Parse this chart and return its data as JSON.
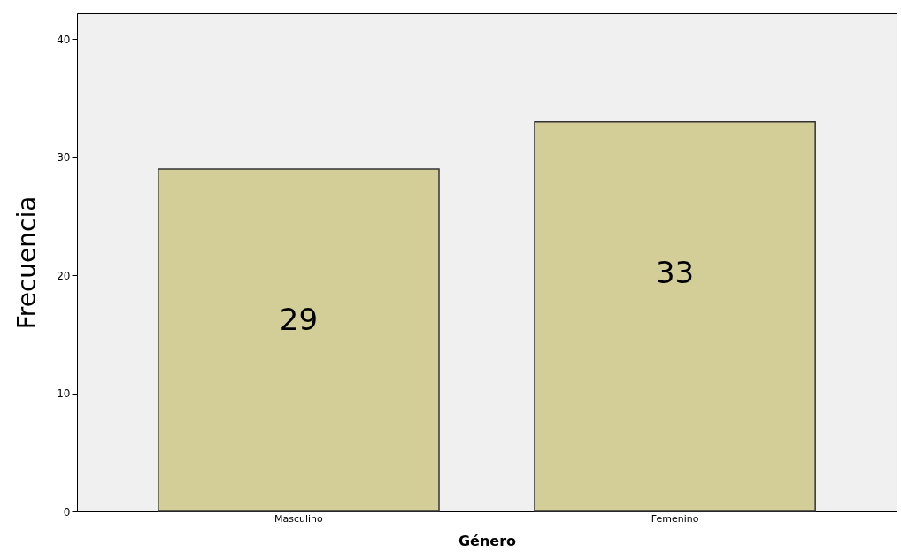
{
  "chart_data": {
    "type": "bar",
    "xlabel": "Género",
    "ylabel": "Frecuencia",
    "categories": [
      "Masculino",
      "Femenino"
    ],
    "values": [
      29,
      33
    ],
    "color": "#d3ce97",
    "ylim": [
      0,
      42.2
    ],
    "yticks": [
      0,
      10,
      20,
      30,
      40
    ],
    "grid": false,
    "data_labels": true
  }
}
